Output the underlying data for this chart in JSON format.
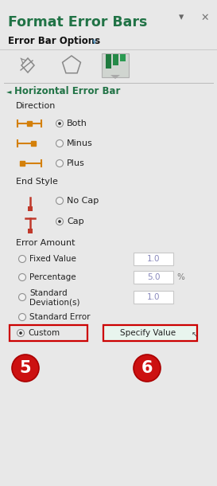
{
  "bg_color": "#E8E8E8",
  "title": "Format Error Bars",
  "title_color": "#217346",
  "title_fontsize": 12.5,
  "error_bar_options_text": "Error Bar Options",
  "chevron_color": "#2E86C1",
  "horizontal_error_bar_text": "Horizontal Error Bar",
  "heb_color": "#217346",
  "direction_text": "Direction",
  "both_text": "Both",
  "minus_text": "Minus",
  "plus_text": "Plus",
  "end_style_text": "End Style",
  "no_cap_text": "No Cap",
  "cap_text": "Cap",
  "error_amount_text": "Error Amount",
  "fixed_value_text": "Fixed Value",
  "percentage_text": "Percentage",
  "std_dev_line1": "Standard",
  "std_dev_line2": "Deviation(s)",
  "std_error_text": "Standard Error",
  "custom_text": "Custom",
  "specify_value_text": "Specify Value",
  "orange": "#D4800A",
  "dark_red": "#C0392B",
  "radio_border": "#909090",
  "radio_fill": "#333333",
  "input_bg": "#FFFFFF",
  "input_border": "#C8C8C8",
  "input_val_color": "#8888BB",
  "red_box": "#CC0000",
  "specify_bg": "#E8F5EE",
  "specify_border": "#3A9A5C",
  "red_circle": "#CC1111",
  "dark_text": "#222222",
  "gray_text": "#777777"
}
